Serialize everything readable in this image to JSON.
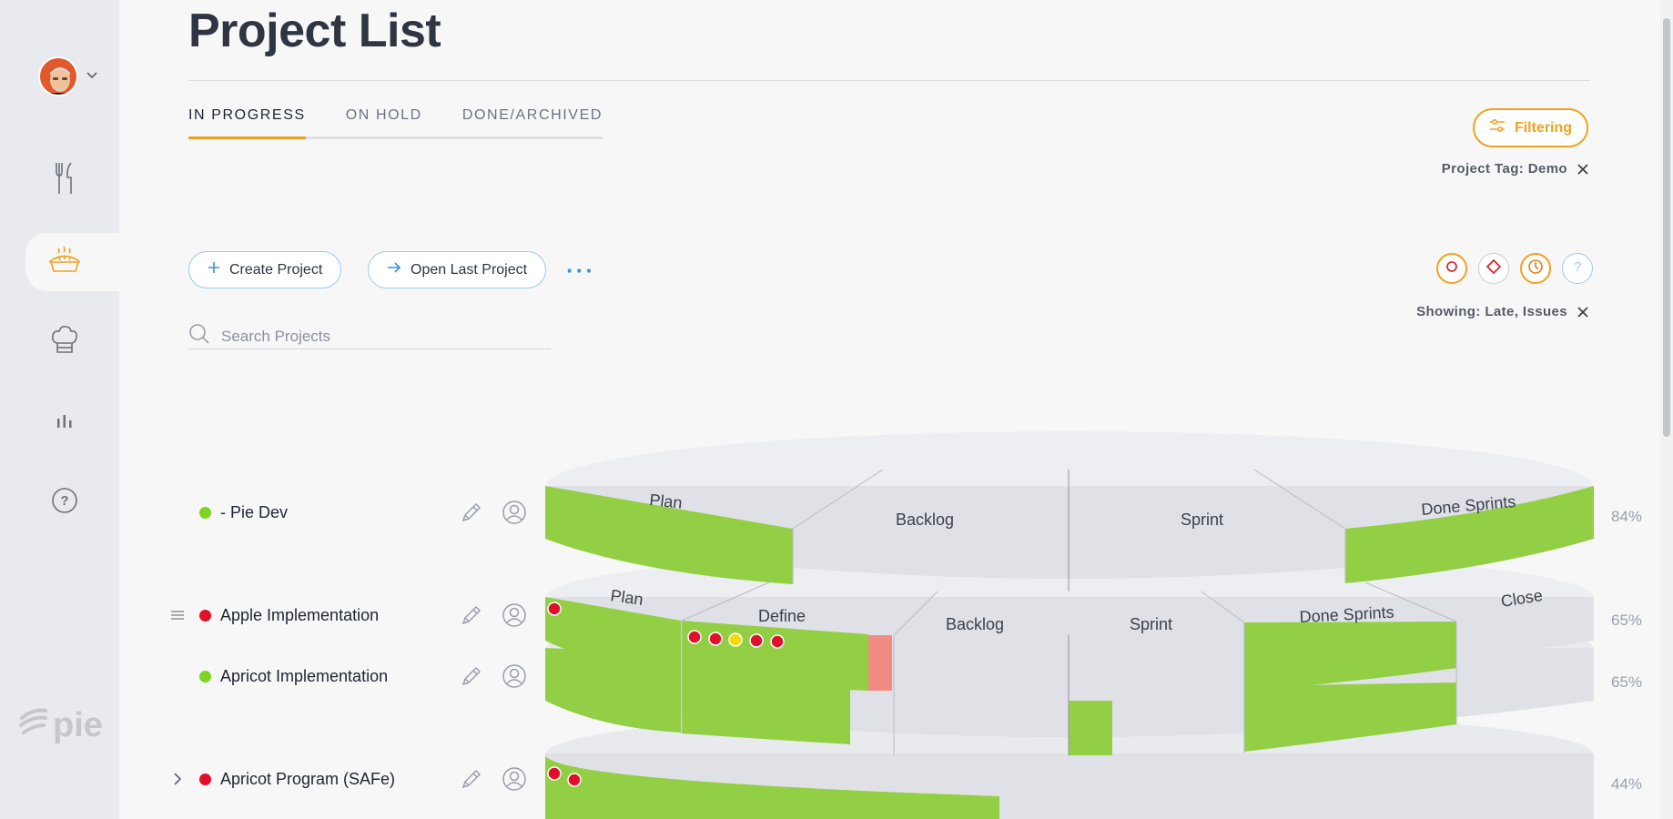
{
  "page": {
    "title": "Project List"
  },
  "tabs": [
    {
      "label": "IN PROGRESS",
      "active": true
    },
    {
      "label": "ON HOLD",
      "active": false
    },
    {
      "label": "DONE/ARCHIVED",
      "active": false
    }
  ],
  "filters": {
    "button_label": "Filtering",
    "tag_text": "Project Tag: Demo",
    "showing_text": "Showing: Late, Issues"
  },
  "actions": {
    "create_label": "Create Project",
    "open_last_label": "Open Last Project",
    "more_label": "···"
  },
  "search": {
    "placeholder": "Search Projects"
  },
  "sidebar": {
    "brand": "pie",
    "items": [
      {
        "icon": "utensils-icon",
        "active": false
      },
      {
        "icon": "pie-icon",
        "active": true
      },
      {
        "icon": "chef-hat-icon",
        "active": false
      },
      {
        "icon": "bar-chart-icon",
        "active": false
      },
      {
        "icon": "help-icon",
        "active": false
      }
    ]
  },
  "colors": {
    "accent": "#f0a21f",
    "status_green": "#7ed321",
    "status_red": "#e0102a",
    "status_yellow": "#f6d90a",
    "phase_green": "#93cf45",
    "phase_grey": "#dfe1e6",
    "late_block": "#f18b84"
  },
  "projects": [
    {
      "name": "- Pie Dev",
      "status": "green",
      "percent": "84%",
      "phases": [
        "Plan",
        "Backlog",
        "Sprint",
        "Done Sprints"
      ]
    },
    {
      "name": "Apple Implementation",
      "status": "red",
      "percent": "65%",
      "phases": [
        "Plan",
        "Define",
        "Backlog",
        "Sprint",
        "Done Sprints",
        "Close"
      ],
      "issue_markers": [
        "red",
        "red",
        "red",
        "yellow",
        "red",
        "red"
      ]
    },
    {
      "name": "Apricot Implementation",
      "status": "green",
      "percent": "65%"
    },
    {
      "name": "Apricot Program (SAFe)",
      "status": "red",
      "percent": "44%",
      "issue_markers": [
        "red",
        "red"
      ]
    }
  ]
}
